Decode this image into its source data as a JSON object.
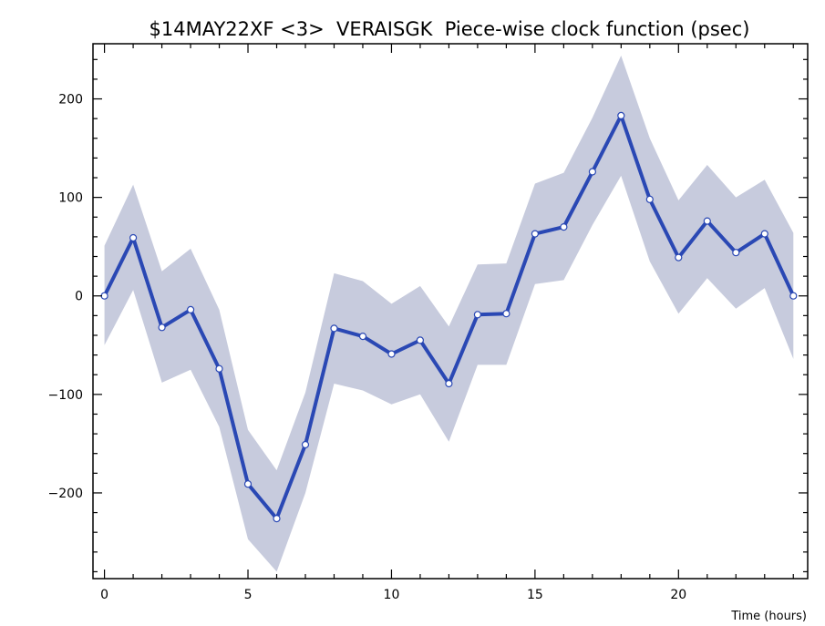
{
  "chart_data": {
    "type": "line",
    "title": "$14MAY22XF <3>  VERAISGK  Piece-wise clock function (psec)",
    "xlabel": "Time (hours)",
    "ylabel": "",
    "xlim": [
      -0.4,
      24.5
    ],
    "ylim": [
      -287,
      256
    ],
    "x_ticks": [
      0,
      5,
      10,
      15,
      20
    ],
    "x_minor_step": 1,
    "y_ticks": [
      -200,
      -100,
      0,
      100,
      200
    ],
    "y_minor_step": 20,
    "grid": false,
    "legend": "none",
    "x": [
      0,
      1,
      2,
      3,
      4,
      5,
      6,
      7,
      8,
      9,
      10,
      11,
      12,
      13,
      14,
      15,
      16,
      17,
      18,
      19,
      20,
      21,
      22,
      23,
      24
    ],
    "series": [
      {
        "values": [
          0,
          59,
          -32,
          -14,
          -74,
          -191,
          -226,
          -151,
          -33,
          -41,
          -59,
          -45,
          -89,
          -19,
          -18,
          63,
          70,
          126,
          183,
          98,
          39,
          76,
          44,
          63,
          0
        ],
        "lower": [
          -50,
          6,
          -88,
          -75,
          -133,
          -247,
          -280,
          -200,
          -89,
          -96,
          -110,
          -100,
          -148,
          -70,
          -70,
          12,
          16,
          72,
          122,
          35,
          -18,
          18,
          -13,
          8,
          -64
        ],
        "upper": [
          51,
          113,
          25,
          48,
          -14,
          -136,
          -177,
          -98,
          23,
          15,
          -8,
          10,
          -31,
          32,
          33,
          114,
          125,
          181,
          244,
          160,
          97,
          133,
          100,
          118,
          64
        ]
      }
    ],
    "colors": {
      "line": "#2a48b4",
      "band": "#c7cbdd",
      "marker_fill": "#ffffff",
      "marker_stroke": "#2a48b4",
      "axis": "#000000",
      "background": "#ffffff"
    }
  }
}
